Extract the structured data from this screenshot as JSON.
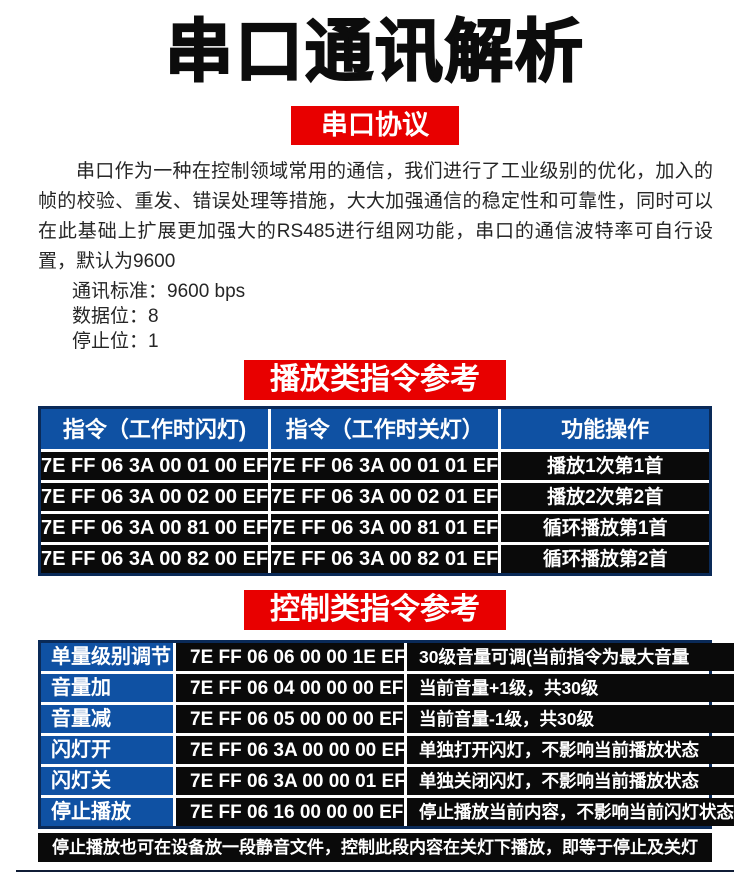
{
  "colors": {
    "accent_red": "#e80000",
    "accent_blue": "#0f51a3",
    "cell_black": "#0a0a0a"
  },
  "header": {
    "title": "串口通讯解析",
    "protocol_badge": "串口协议"
  },
  "protocol": {
    "intro": "串口作为一种在控制领域常用的通信，我们进行了工业级别的优化，加入的帧的校验、重发、错误处理等措施，大大加强通信的稳定性和可靠性，同时可以在此基础上扩展更加强大的RS485进行组网功能，串口的通信波特率可自行设置，默认为9600",
    "specs": [
      "通讯标准：9600 bps",
      "数据位：8",
      "停止位：1"
    ]
  },
  "play_section": {
    "badge": "播放类指令参考",
    "columns": [
      "指令（工作时闪灯)",
      "指令（工作时关灯）",
      "功能操作"
    ],
    "rows": [
      [
        "7E FF 06 3A 00 01 00 EF",
        "7E FF 06 3A 00 01 01 EF",
        "播放1次第1首"
      ],
      [
        "7E FF 06 3A 00 02 00 EF",
        "7E FF 06 3A 00 02 01 EF",
        "播放2次第2首"
      ],
      [
        "7E FF 06 3A 00 81 00 EF",
        "7E FF 06 3A 00 81 01 EF",
        "循环播放第1首"
      ],
      [
        "7E FF 06 3A 00 82 00 EF",
        "7E FF 06 3A 00 82 01 EF",
        "循环播放第2首"
      ]
    ]
  },
  "control_section": {
    "badge": "控制类指令参考",
    "rows": [
      [
        "单量级别调节",
        "7E FF 06 06 00 00 1E EF",
        "30级音量可调(当前指令为最大音量"
      ],
      [
        "音量加",
        "7E FF 06 04 00 00 00 EF",
        "当前音量+1级，共30级"
      ],
      [
        "音量减",
        "7E FF 06 05 00 00 00 EF",
        "当前音量-1级，共30级"
      ],
      [
        "闪灯开",
        "7E FF 06 3A 00 00 00 EF",
        "单独打开闪灯，不影响当前播放状态"
      ],
      [
        "闪灯关",
        "7E FF 06 3A 00 00 01 EF",
        "单独关闭闪灯，不影响当前播放状态"
      ],
      [
        "停止播放",
        "7E FF 06 16 00 00 00 EF",
        "停止播放当前内容，不影响当前闪灯状态"
      ]
    ],
    "note": "停止播放也可在设备放一段静音文件，控制此段内容在关灯下播放，即等于停止及关灯"
  }
}
